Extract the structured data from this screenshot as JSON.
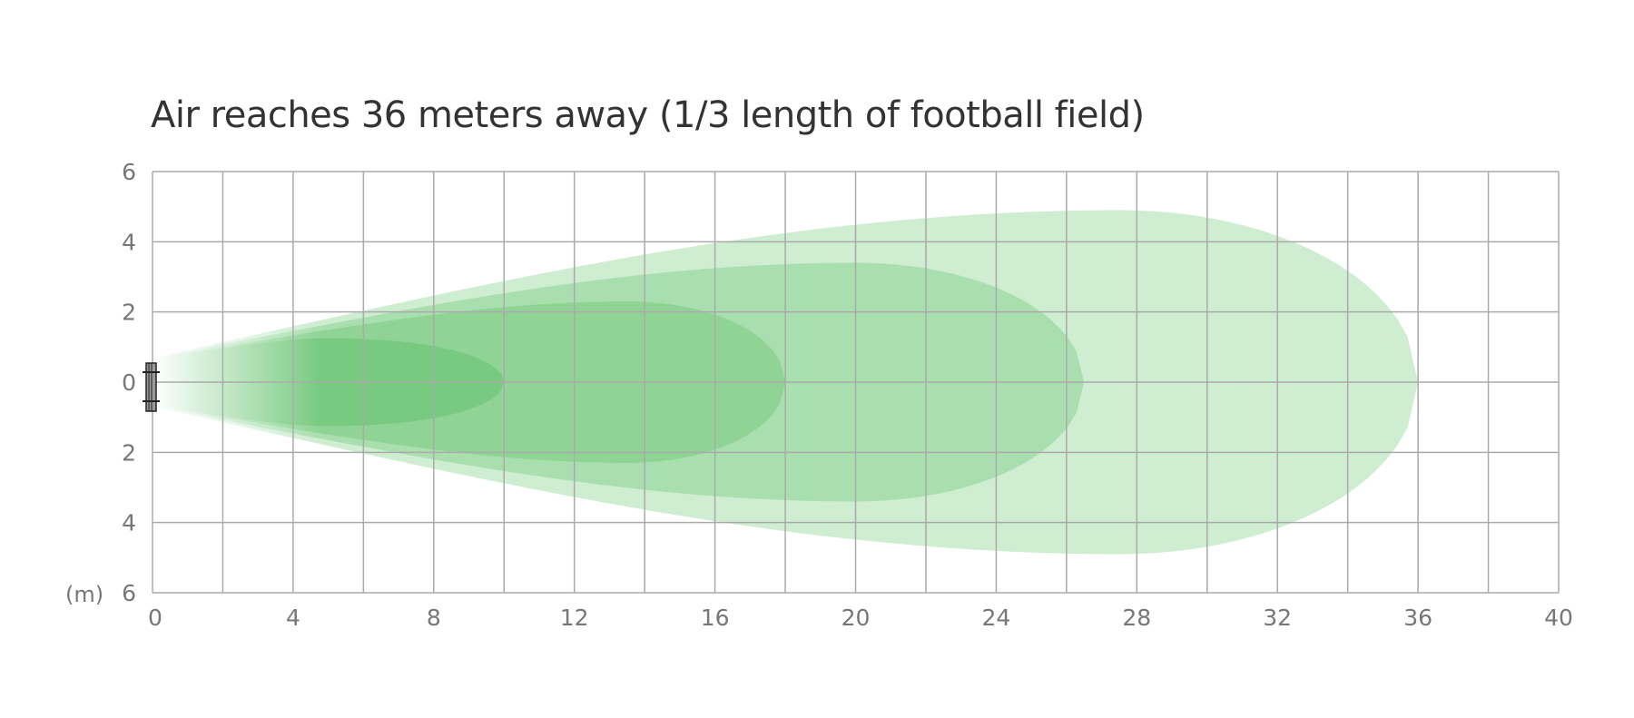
{
  "chart_data": {
    "type": "area",
    "title": "Air reaches 36 meters away (1/3 length of football field)",
    "unit_label": "(m)",
    "xlim": [
      0,
      40
    ],
    "ylim": [
      -6,
      6
    ],
    "x_ticks": [
      "0",
      "4",
      "8",
      "12",
      "16",
      "20",
      "24",
      "28",
      "32",
      "36",
      "40"
    ],
    "y_ticks": [
      "6",
      "4",
      "2",
      "0",
      "2",
      "4",
      "6"
    ],
    "grid": true,
    "grid_step": {
      "x": 2,
      "y": 2
    },
    "series": [
      {
        "reach": 36,
        "max_half_width": 4.9,
        "peak_x": 27.5,
        "color": "#7fcf86"
      },
      {
        "reach": 26.5,
        "max_half_width": 3.4,
        "peak_x": 20,
        "color": "#6fc878"
      },
      {
        "reach": 18,
        "max_half_width": 2.3,
        "peak_x": 13.5,
        "color": "#63c26d"
      },
      {
        "reach": 10,
        "max_half_width": 1.25,
        "peak_x": 5,
        "color": "#55bb61"
      }
    ],
    "colors": {
      "grid": "#aaaaaa",
      "title": "#333333",
      "ticks": "#777777"
    },
    "icon": "fan-unit-icon"
  }
}
